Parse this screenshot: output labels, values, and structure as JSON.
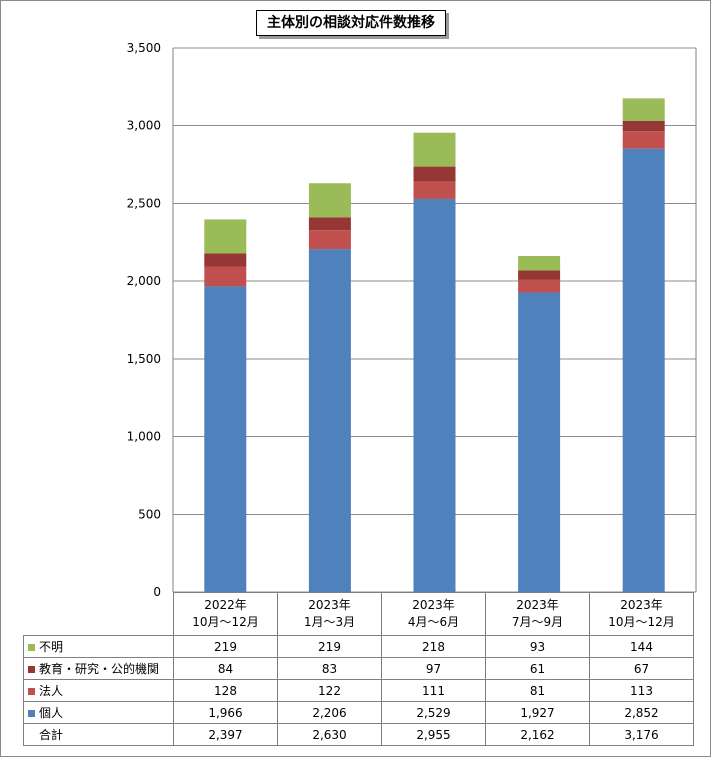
{
  "chart_data": {
    "type": "bar",
    "stacked": true,
    "title": "主体別の相談対応件数推移",
    "categories": [
      {
        "year": "2022年",
        "months": "10月～12月"
      },
      {
        "year": "2023年",
        "months": "1月～3月"
      },
      {
        "year": "2023年",
        "months": "4月～6月"
      },
      {
        "year": "2023年",
        "months": "7月～9月"
      },
      {
        "year": "2023年",
        "months": "10月～12月"
      }
    ],
    "series": [
      {
        "name": "個人",
        "color": "#4f81bd",
        "values": [
          1966,
          2206,
          2529,
          1927,
          2852
        ],
        "labels": [
          "1,966",
          "2,206",
          "2,529",
          "1,927",
          "2,852"
        ]
      },
      {
        "name": "法人",
        "color": "#c0504d",
        "values": [
          128,
          122,
          111,
          81,
          113
        ],
        "labels": [
          "128",
          "122",
          "111",
          "81",
          "113"
        ]
      },
      {
        "name": "教育・研究・公的機関",
        "color": "#953735",
        "values": [
          84,
          83,
          97,
          61,
          67
        ],
        "labels": [
          "84",
          "83",
          "97",
          "61",
          "67"
        ]
      },
      {
        "name": "不明",
        "color": "#9bbb59",
        "values": [
          219,
          219,
          218,
          93,
          144
        ],
        "labels": [
          "219",
          "219",
          "218",
          "93",
          "144"
        ]
      }
    ],
    "table_rows": [
      {
        "label": "不明",
        "color": "#9bbb59",
        "values": [
          "219",
          "219",
          "218",
          "93",
          "144"
        ]
      },
      {
        "label": "教育・研究・公的機関",
        "color": "#953735",
        "values": [
          "84",
          "83",
          "97",
          "61",
          "67"
        ]
      },
      {
        "label": "法人",
        "color": "#c0504d",
        "values": [
          "128",
          "122",
          "111",
          "81",
          "113"
        ]
      },
      {
        "label": "個人",
        "color": "#4f81bd",
        "values": [
          "1,966",
          "2,206",
          "2,529",
          "1,927",
          "2,852"
        ]
      },
      {
        "label": "合計",
        "color": null,
        "values": [
          "2,397",
          "2,630",
          "2,955",
          "2,162",
          "3,176"
        ]
      }
    ],
    "ylim": [
      0,
      3500
    ],
    "yticks": [
      0,
      500,
      1000,
      1500,
      2000,
      2500,
      3000,
      3500
    ],
    "ytick_labels": [
      "0",
      "500",
      "1,000",
      "1,500",
      "2,000",
      "2,500",
      "3,000",
      "3,500"
    ],
    "grid": true,
    "legend": "data table below chart"
  }
}
